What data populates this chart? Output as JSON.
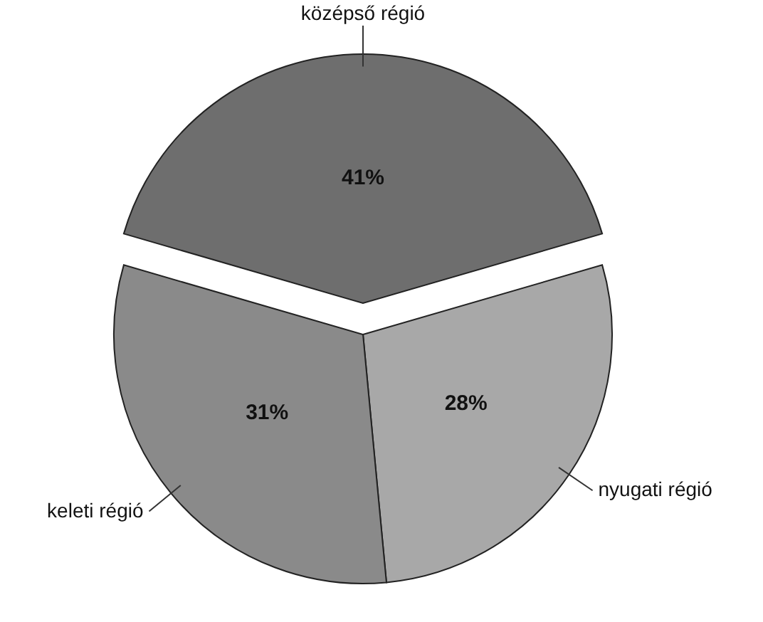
{
  "chart_data": {
    "type": "pie",
    "categories": [
      "középső régió",
      "nyugati régió",
      "keleti régió"
    ],
    "values": [
      41,
      28,
      31
    ],
    "colors": [
      "#6e6e6e",
      "#a8a8a8",
      "#8a8a8a"
    ],
    "value_labels": [
      "41%",
      "28%",
      "31%"
    ]
  }
}
